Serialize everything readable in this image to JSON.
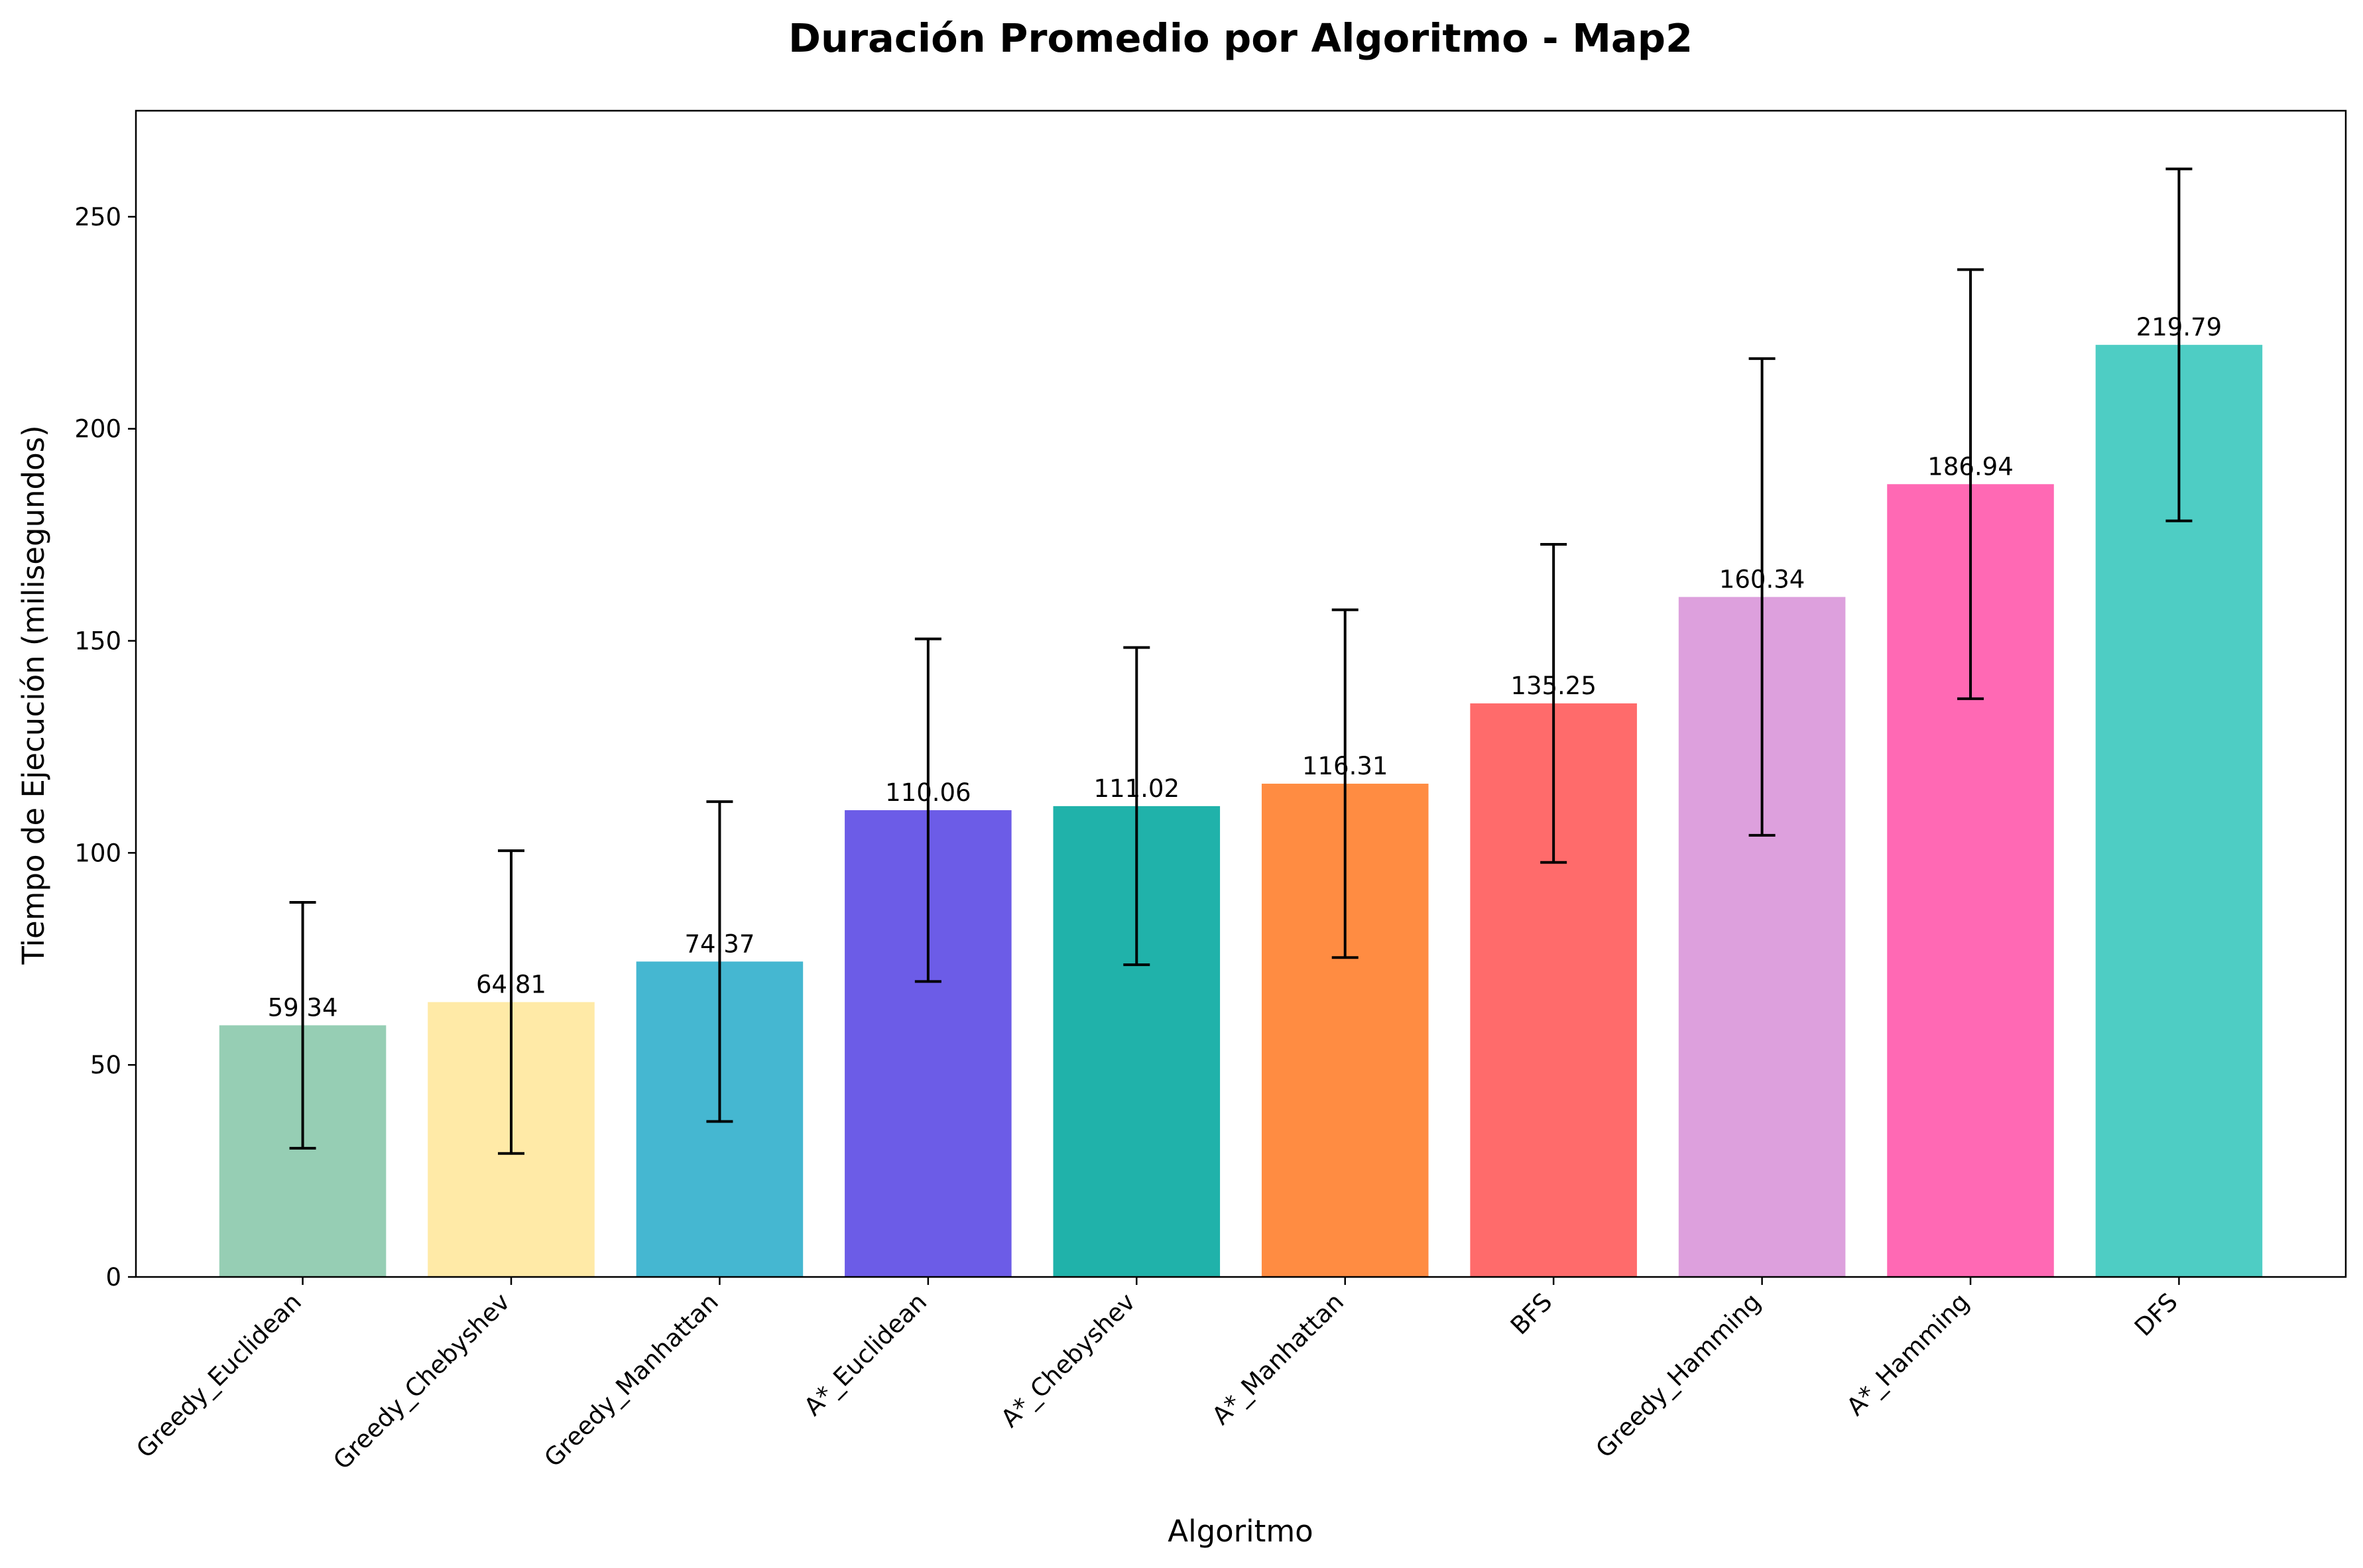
{
  "chart_data": {
    "type": "bar",
    "title": "Duración Promedio por Algoritmo - Map2",
    "xlabel": "Algoritmo",
    "ylabel": "Tiempo de Ejecución (milisegundos)",
    "ylim": [
      0,
      275
    ],
    "yticks": [
      0,
      50,
      100,
      150,
      200,
      250
    ],
    "grid": false,
    "categories": [
      "Greedy_Euclidean",
      "Greedy_Chebyshev",
      "Greedy_Manhattan",
      "A*_Euclidean",
      "A*_Chebyshev",
      "A*_Manhattan",
      "BFS",
      "Greedy_Hamming",
      "A*_Hamming",
      "DFS"
    ],
    "values": [
      59.34,
      64.81,
      74.37,
      110.06,
      111.02,
      116.31,
      135.25,
      160.34,
      186.94,
      219.79
    ],
    "value_labels": [
      "59.34",
      "64.81",
      "74.37",
      "110.06",
      "111.02",
      "116.31",
      "135.25",
      "160.34",
      "186.94",
      "219.79"
    ],
    "errors": [
      29.0,
      35.7,
      37.7,
      40.4,
      37.4,
      41.0,
      37.5,
      56.2,
      50.6,
      41.5
    ],
    "colors": [
      "#96CEB4",
      "#FFEAA7",
      "#45B7D1",
      "#6C5CE7",
      "#20B2AA",
      "#FF8C42",
      "#FF6B6B",
      "#DDA0DD",
      "#FF69B4",
      "#4ECDC4"
    ]
  }
}
